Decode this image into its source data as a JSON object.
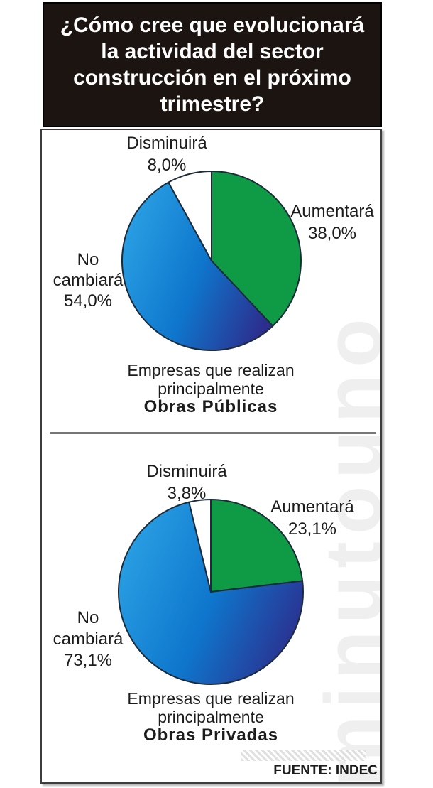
{
  "header": {
    "lines": [
      "¿Cómo cree que evolucionará",
      "la actividad del sector",
      "construcción en el próximo",
      "trimestre?"
    ]
  },
  "footer": {
    "source_label": "FUENTE: INDEC"
  },
  "watermark": {
    "text": "minutouno"
  },
  "colors": {
    "green": "#0f9a46",
    "blue-gradient": [
      "#2aa0e4",
      "#0e76cc",
      "#2c2e8e"
    ],
    "white": "#ffffff",
    "outline": "#1d2b38",
    "header_bg": "#1b1411",
    "header_text": "#ffffff",
    "text": "#1c1c1c",
    "divider": "#777777",
    "watermark": "#efefef"
  },
  "chart_data": [
    {
      "type": "pie",
      "title": [
        "Empresas que realizan",
        "principalmente",
        "Obras Públicas"
      ],
      "start_angle_deg": 0,
      "direction": "clockwise",
      "slices": [
        {
          "label": "Aumentará",
          "label_lines": [
            "Aumentará"
          ],
          "value": 38.0,
          "display": "38,0%",
          "color": "green"
        },
        {
          "label": "No cambiará",
          "label_lines": [
            "No",
            "cambiará"
          ],
          "value": 54.0,
          "display": "54,0%",
          "color": "blue-gradient"
        },
        {
          "label": "Disminuirá",
          "label_lines": [
            "Disminuirá"
          ],
          "value": 8.0,
          "display": "8,0%",
          "color": "white"
        }
      ]
    },
    {
      "type": "pie",
      "title": [
        "Empresas que realizan",
        "principalmente",
        "Obras Privadas"
      ],
      "start_angle_deg": 0,
      "direction": "clockwise",
      "slices": [
        {
          "label": "Aumentará",
          "label_lines": [
            "Aumentará"
          ],
          "value": 23.1,
          "display": "23,1%",
          "color": "green"
        },
        {
          "label": "No cambiará",
          "label_lines": [
            "No",
            "cambiará"
          ],
          "value": 73.1,
          "display": "73,1%",
          "color": "blue-gradient"
        },
        {
          "label": "Disminuirá",
          "label_lines": [
            "Disminuirá"
          ],
          "value": 3.8,
          "display": "3,8%",
          "color": "white"
        }
      ]
    }
  ]
}
